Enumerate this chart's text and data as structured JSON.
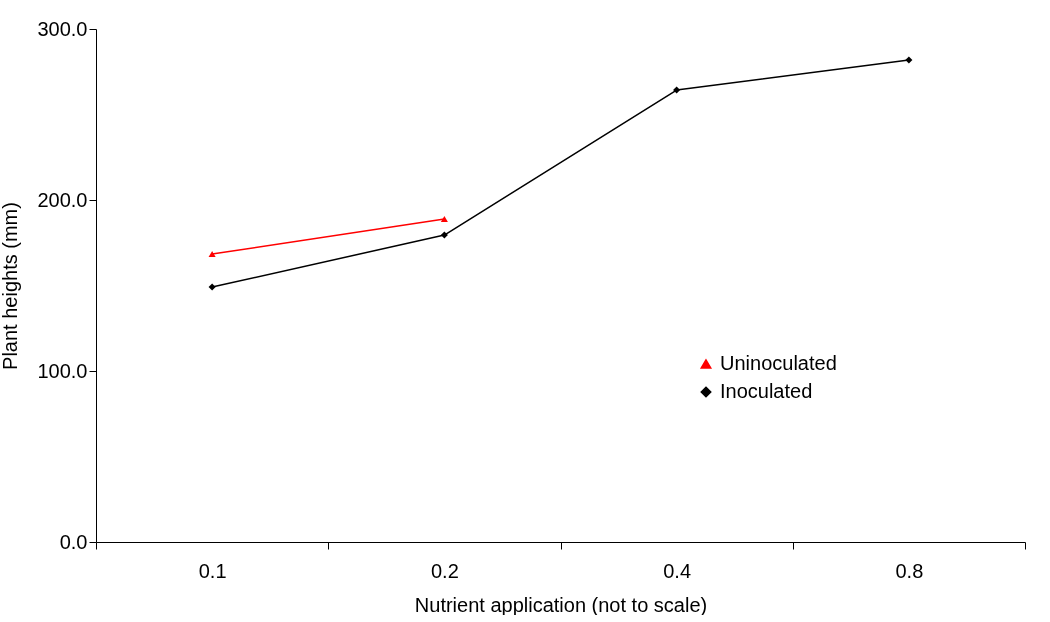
{
  "chart_data": {
    "type": "line",
    "xlabel": "Nutrient application (not to scale)",
    "ylabel": "Plant heights (mm)",
    "categories": [
      "0.1",
      "0.2",
      "0.4",
      "0.8"
    ],
    "series": [
      {
        "name": "Uninoculated",
        "color": "#ff0000",
        "marker": "triangle",
        "values": [
          168.4,
          188.9,
          null,
          null
        ]
      },
      {
        "name": "Inoculated",
        "color": "#000000",
        "marker": "diamond",
        "values": [
          149.1,
          179.5,
          264.3,
          281.9
        ]
      }
    ],
    "ylim": [
      0,
      300
    ],
    "yticks": [
      {
        "value": 0,
        "label": "0.0"
      },
      {
        "value": 100,
        "label": "100.0"
      },
      {
        "value": 200,
        "label": "200.0"
      },
      {
        "value": 300,
        "label": "300.0"
      }
    ],
    "grid": false,
    "legend": "right"
  }
}
